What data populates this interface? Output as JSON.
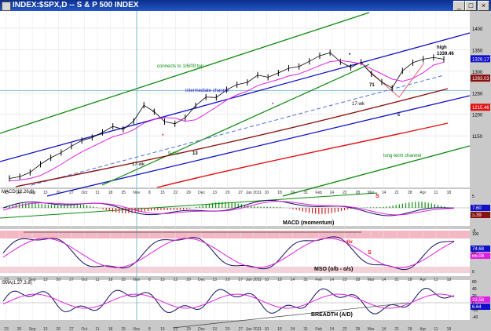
{
  "window": {
    "title": "INDEX:$SPX,D -- S & P 500 INDEX",
    "btn_min": "_",
    "btn_max": "□",
    "btn_close": "×"
  },
  "panels": {
    "macd_label": "MACD(12,26,8)",
    "macd_name": "MACD (momentum)",
    "mso_name": "MSO (o/b - o/s)",
    "breadth_label": "SMA(1,27,3,8)",
    "breadth_name": "BREADTH (A/D)"
  },
  "colors": {
    "intermediate_channel": "#1010c8",
    "long_term_channel": "#0b8a0b",
    "price": "#000000",
    "ma_fast": "#e020e0",
    "ma_slow": "#8b1010",
    "ma_long": "#e01010",
    "dashed_trend": "#5070e0",
    "overbought_band": "#f4b8c4"
  },
  "chart_data": [
    {
      "type": "line",
      "title": "INDEX:$SPX,D -- S & P 500 INDEX",
      "x_start": "2010-08-23",
      "x_end": "2011-04-11",
      "x_ticks": [
        "23",
        "30",
        "Sep",
        "13",
        "20",
        "27",
        "Oct",
        "11",
        "18",
        "25",
        "Nov",
        "8",
        "15",
        "22",
        "29",
        "Dec",
        "13",
        "20",
        "27",
        "Jan 2011",
        "10",
        "18",
        "24",
        "31",
        "Feb",
        "14",
        "22",
        "28",
        "Mar",
        "14",
        "21",
        "28",
        "Apr",
        "11",
        "18"
      ],
      "ylim": [
        1030,
        1440
      ],
      "y_ticks": [
        1400,
        1350,
        1300,
        1250,
        1200,
        1150
      ],
      "series": [
        {
          "values": [
            1051,
            1055,
            1065,
            1084,
            1099,
            1111,
            1126,
            1139,
            1146,
            1158,
            1172,
            1165,
            1184,
            1221,
            1206,
            1183,
            1178,
            1192,
            1220,
            1240,
            1239,
            1257,
            1269,
            1274,
            1291,
            1286,
            1296,
            1307,
            1311,
            1323,
            1336,
            1343,
            1322,
            1309,
            1321,
            1294,
            1275,
            1261,
            1301,
            1320,
            1328,
            1332,
            1328
          ]
        }
      ],
      "value_labels": [
        "1328.17",
        "1283.03",
        "1215.46"
      ],
      "high_label": "high",
      "high_value": "1339.46",
      "annotations": [
        "connects to 1/6/09 top",
        "intermediate channel",
        "long-term channel",
        "*",
        "*",
        "*",
        "*",
        "17-wk",
        "17-wk",
        "9-mo",
        "13",
        "71",
        "c"
      ]
    },
    {
      "type": "bar",
      "title": "MACD (momentum)",
      "y_ticks": [
        "5",
        "0",
        "-5"
      ],
      "value_labels": [
        "7.60",
        "5.39"
      ],
      "annotations": [
        "S"
      ]
    },
    {
      "type": "line",
      "title": "MSO (o/b - o/s)",
      "ylim": [
        0,
        100
      ],
      "y_ticks": [
        100,
        50,
        0
      ],
      "value_labels": [
        "74.68",
        "66.08"
      ],
      "annotations": [
        "div",
        "S"
      ]
    },
    {
      "type": "line",
      "title": "BREADTH (A/D)",
      "y_ticks": [
        "60",
        "40",
        "20",
        "0",
        "-20",
        "-40"
      ],
      "value_labels": [
        "23.58",
        "6.64"
      ]
    }
  ]
}
